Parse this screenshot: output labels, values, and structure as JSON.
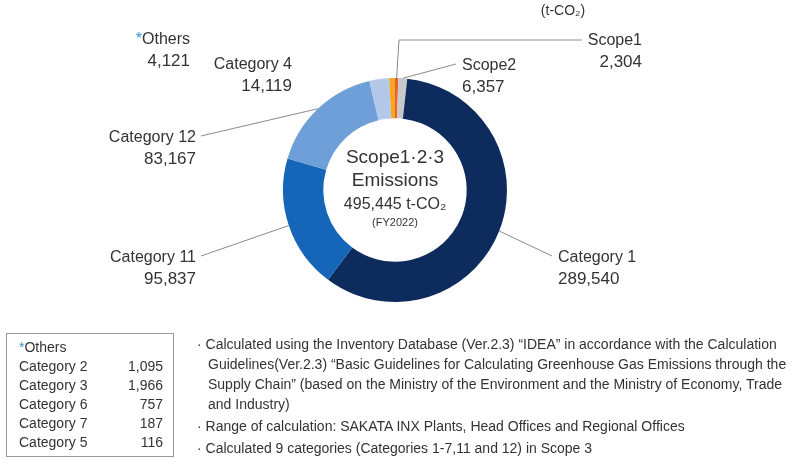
{
  "chart_data": {
    "type": "doughnut",
    "unit": "(t-CO₂)",
    "center_text": [
      "Scope1·2·3",
      "Emissions",
      "495,445 t-CO₂",
      "(FY2022)"
    ],
    "categories": [
      "Scope1",
      "Scope2",
      "Category 1",
      "Category 11",
      "Category 12",
      "Category 4",
      "*Others"
    ],
    "values": [
      2304,
      6357,
      289540,
      95837,
      83167,
      14119,
      4121
    ],
    "value_labels": [
      "2,304",
      "6,357",
      "289,540",
      "95,837",
      "83,167",
      "14,119",
      "4,121"
    ],
    "colors": [
      "#e8632b",
      "#c9c9c9",
      "#0d2b5c",
      "#1565b8",
      "#6e9fd8",
      "#b4c9ea",
      "#f5a623"
    ],
    "data_labels": true
  },
  "others_table": {
    "title": "*Others",
    "rows": [
      [
        "Category 2",
        "1,095"
      ],
      [
        "Category 3",
        "1,966"
      ],
      [
        "Category 6",
        "757"
      ],
      [
        "Category 7",
        "187"
      ],
      [
        "Category 5",
        "116"
      ]
    ]
  },
  "notes": [
    "· Calculated using the Inventory Database (Ver.2.3) “IDEA” in accordance with the Calculation Guidelines(Ver.2.3) “Basic Guidelines for Calculating Greenhouse Gas Emissions through the Supply Chain” (based on the Ministry of the Environment and the Ministry of Economy, Trade and Industry)",
    "· Range of calculation: SAKATA INX Plants, Head Offices and Regional Offices",
    "· Calculated 9 categories (Categories 1-7,11 and 12) in Scope 3"
  ]
}
